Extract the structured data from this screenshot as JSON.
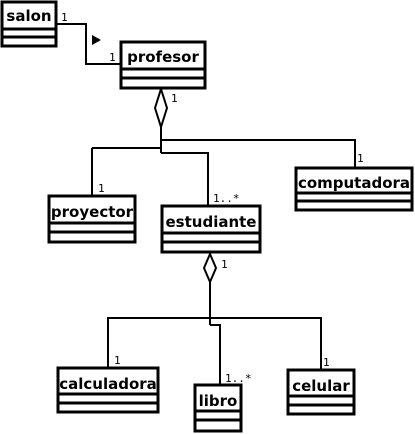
{
  "classes": {
    "salon": "salon",
    "profesor": "profesor",
    "proyector": "proyector",
    "estudiante": "estudiante",
    "computadora": "computadora",
    "calculadora": "calculadora",
    "libro": "libro",
    "celular": "celular"
  },
  "multiplicities": {
    "salon_end": "1",
    "profesor_end": "1",
    "profesor_aggregate": "1",
    "computadora": "1",
    "proyector": "1",
    "estudiante": "1..*",
    "estudiante_aggregate": "1",
    "calculadora": "1",
    "libro": "1..*",
    "celular": "1"
  },
  "colors": {
    "stroke": "#000000",
    "background": "#ffffff"
  }
}
